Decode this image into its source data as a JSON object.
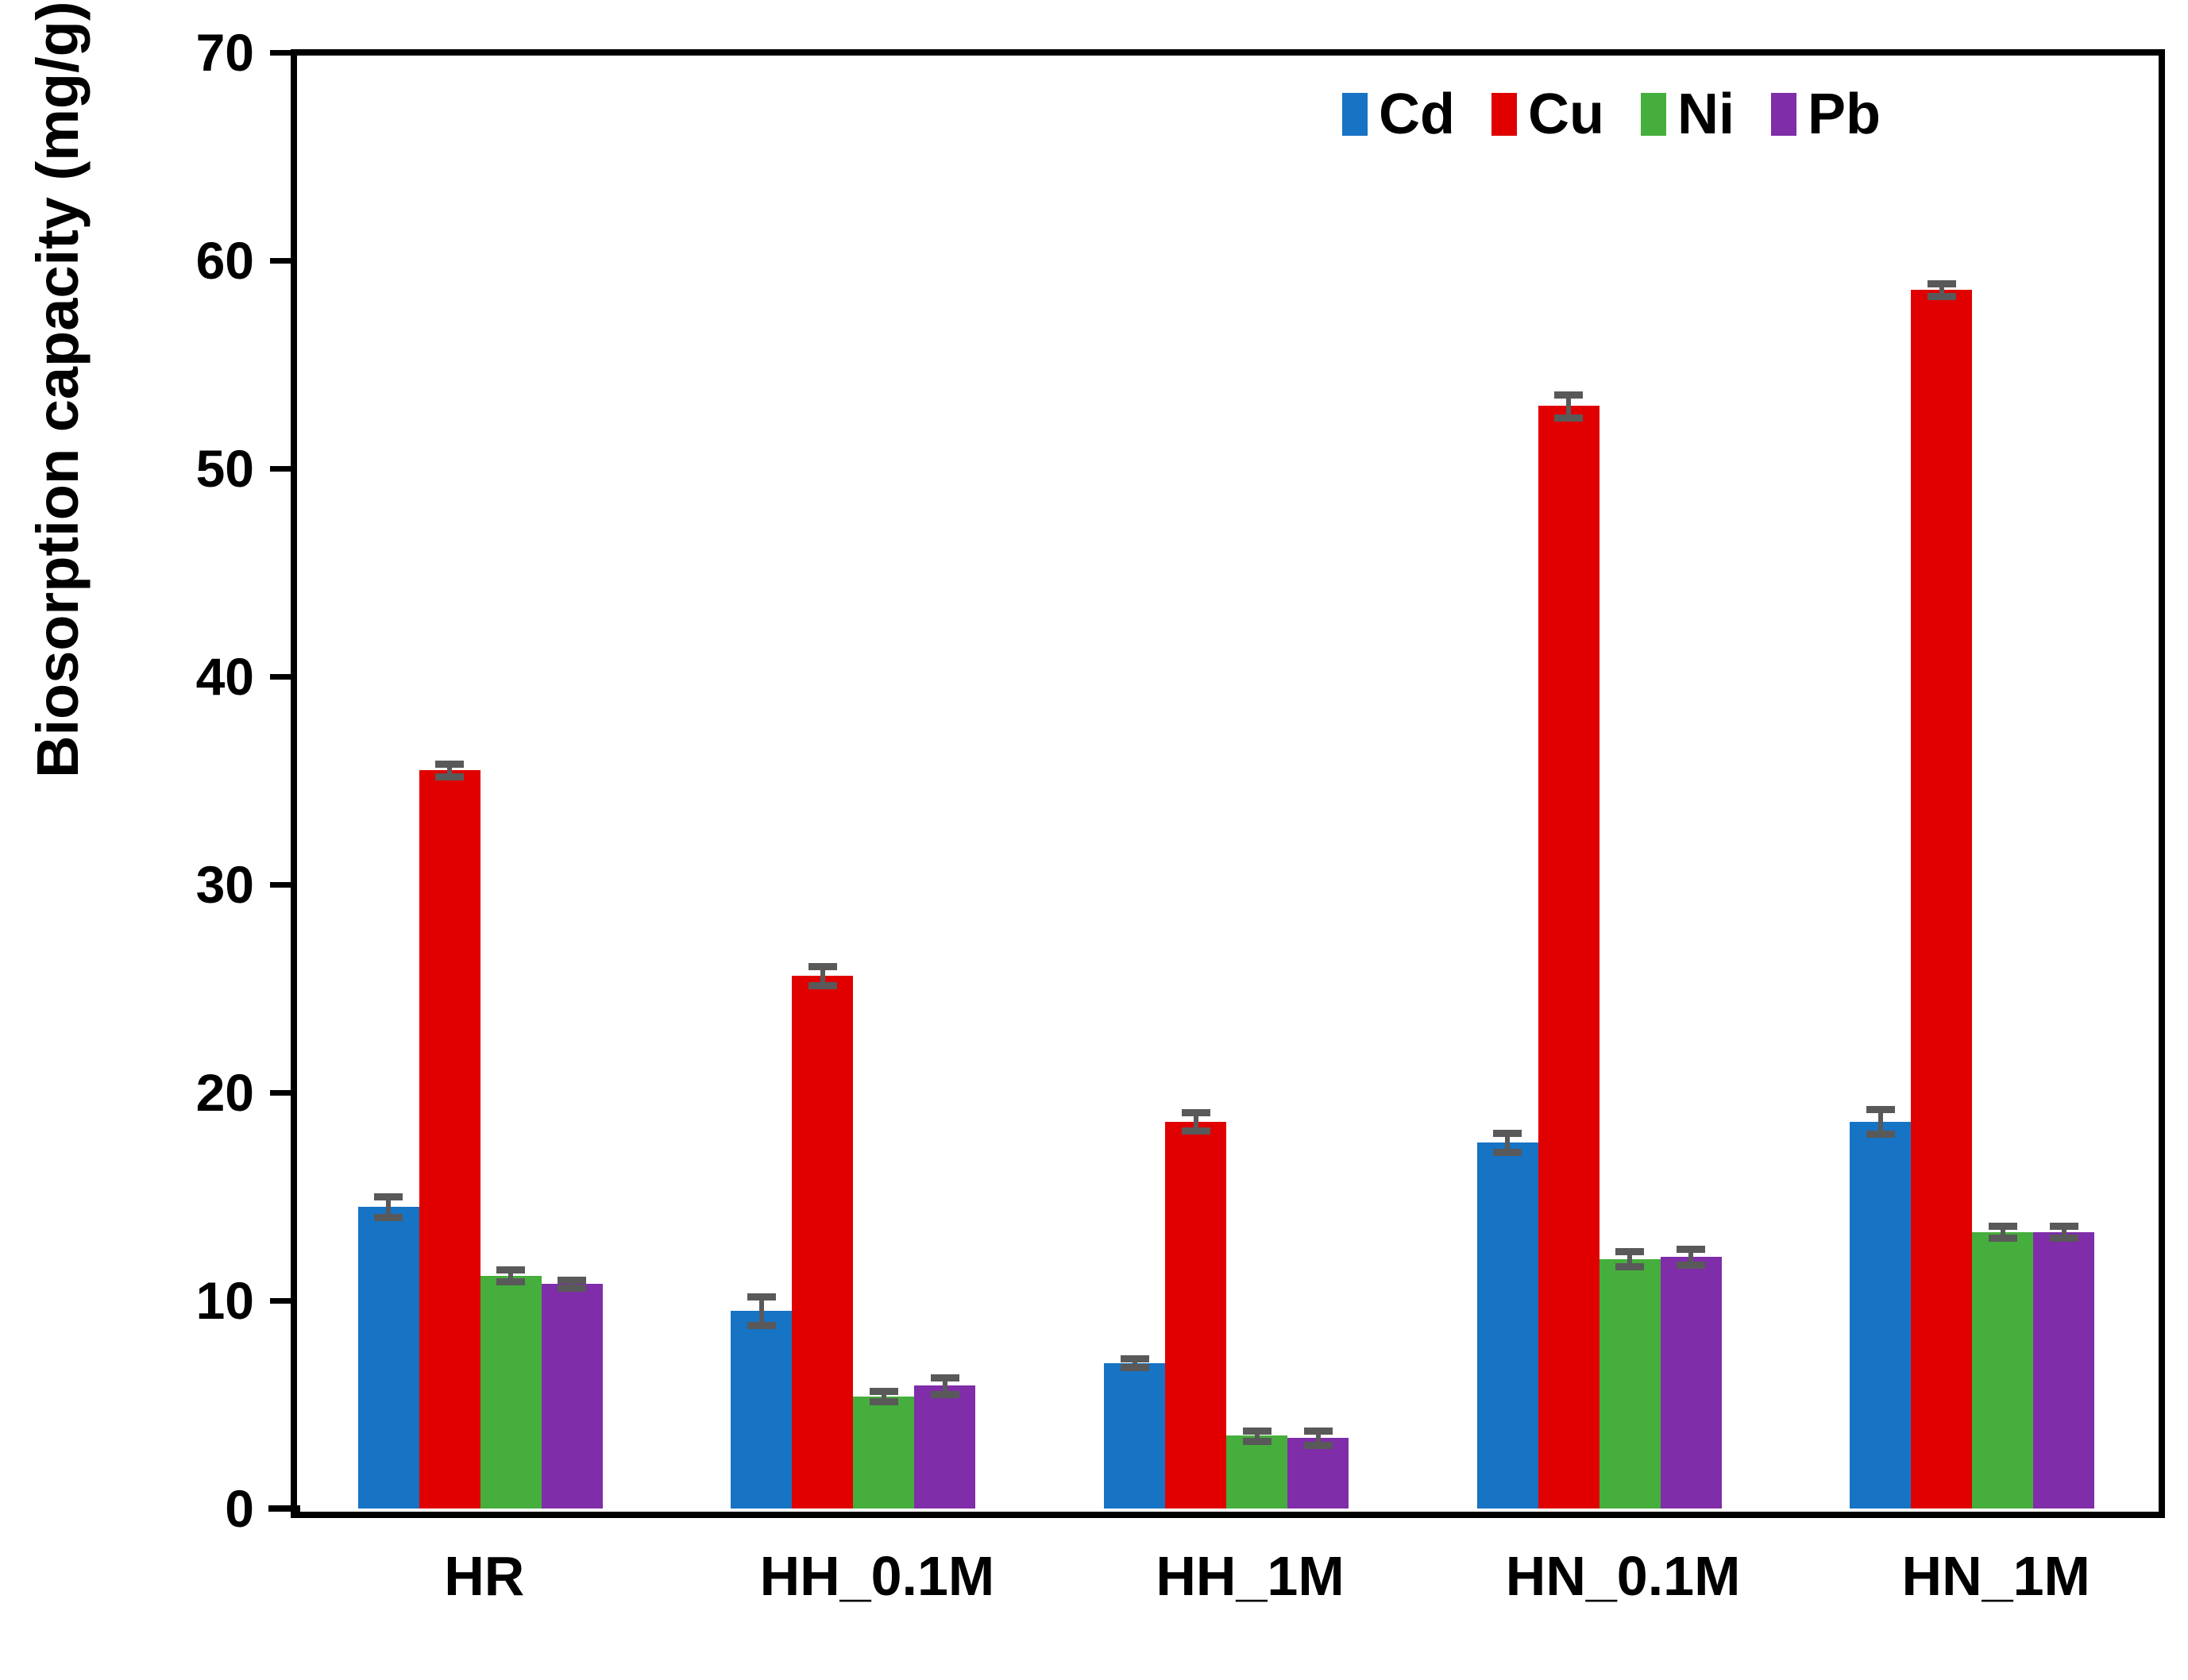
{
  "chart_data": {
    "type": "bar",
    "title": "",
    "ylabel": "Biosorption capacity (mg/g)",
    "xlabel": "",
    "ylim": [
      0,
      70
    ],
    "yticks": [
      0,
      10,
      20,
      30,
      40,
      50,
      60,
      70
    ],
    "grid": false,
    "legend_position": "top-right-inside",
    "categories": [
      "HR",
      "HH_0.1M",
      "HH_1M",
      "HN_0.1M",
      "HN_1M"
    ],
    "series": [
      {
        "name": "Cd",
        "color": "#1773C4",
        "values": [
          14.5,
          9.5,
          7.0,
          17.6,
          18.6
        ],
        "errors": [
          0.5,
          0.7,
          0.2,
          0.45,
          0.6
        ]
      },
      {
        "name": "Cu",
        "color": "#E00000",
        "values": [
          35.5,
          25.6,
          18.6,
          53.0,
          58.6
        ],
        "errors": [
          0.3,
          0.45,
          0.45,
          0.55,
          0.3
        ]
      },
      {
        "name": "Ni",
        "color": "#46AE3C",
        "values": [
          11.2,
          5.4,
          3.5,
          12.0,
          13.3
        ],
        "errors": [
          0.3,
          0.25,
          0.25,
          0.35,
          0.3
        ]
      },
      {
        "name": "Pb",
        "color": "#7F2DA8",
        "values": [
          10.8,
          5.9,
          3.4,
          12.1,
          13.3
        ],
        "errors": [
          0.2,
          0.4,
          0.35,
          0.4,
          0.3
        ]
      }
    ],
    "error_bar_color": "#595959",
    "axis_color": "#000000"
  }
}
